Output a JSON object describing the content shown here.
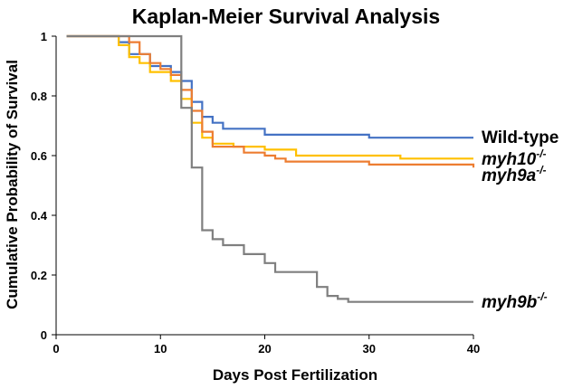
{
  "chart_data": {
    "type": "line",
    "title": "Kaplan-Meier Survival Analysis",
    "xlabel": "Days Post Fertilization",
    "ylabel": "Cumulative Probability of Survival",
    "xlim": [
      0,
      40
    ],
    "ylim": [
      0,
      1
    ],
    "x_ticks": [
      0,
      10,
      20,
      30,
      40
    ],
    "y_ticks": [
      0,
      0.2,
      0.4,
      0.6,
      0.8,
      1
    ],
    "x_tick_labels": [
      "0",
      "10",
      "20",
      "30",
      "40"
    ],
    "y_tick_labels": [
      "0",
      "0.2",
      "0.4",
      "0.6",
      "0.8",
      "1"
    ],
    "grid": false,
    "legend": "inline-right",
    "series": [
      {
        "name": "Wild-type",
        "label_main": "Wild-type",
        "label_sup": "",
        "italic": false,
        "color": "#4472C4",
        "x": [
          1,
          6,
          7,
          9,
          11,
          12,
          13,
          14,
          15,
          16,
          20,
          30,
          40
        ],
        "y": [
          1.0,
          0.98,
          0.94,
          0.9,
          0.88,
          0.85,
          0.78,
          0.73,
          0.71,
          0.69,
          0.67,
          0.66,
          0.66
        ]
      },
      {
        "name": "myh10-/-",
        "label_main": "myh10",
        "label_sup": "-/-",
        "italic": true,
        "color": "#FFC000",
        "x": [
          1,
          6,
          7,
          8,
          9,
          11,
          12,
          13,
          14,
          15,
          17,
          20,
          23,
          33,
          40
        ],
        "y": [
          1.0,
          0.97,
          0.93,
          0.91,
          0.88,
          0.85,
          0.79,
          0.71,
          0.66,
          0.64,
          0.63,
          0.62,
          0.6,
          0.59,
          0.59
        ]
      },
      {
        "name": "myh9a-/-",
        "label_main": "myh9a",
        "label_sup": "-/-",
        "italic": true,
        "color": "#ED7D31",
        "x": [
          1,
          6,
          7,
          8,
          9,
          10,
          11,
          12,
          13,
          14,
          15,
          18,
          20,
          21,
          22,
          30,
          40
        ],
        "y": [
          1.0,
          1.0,
          0.98,
          0.94,
          0.91,
          0.89,
          0.87,
          0.82,
          0.75,
          0.68,
          0.63,
          0.61,
          0.6,
          0.59,
          0.58,
          0.57,
          0.56
        ]
      },
      {
        "name": "myh9b-/-",
        "label_main": "myh9b",
        "label_sup": "-/-",
        "italic": true,
        "color": "#7F7F7F",
        "x": [
          1,
          11,
          12,
          13,
          14,
          15,
          16,
          18,
          20,
          21,
          25,
          26,
          27,
          28,
          40
        ],
        "y": [
          1.0,
          1.0,
          0.76,
          0.56,
          0.35,
          0.32,
          0.3,
          0.27,
          0.24,
          0.21,
          0.16,
          0.13,
          0.12,
          0.11,
          0.11
        ]
      }
    ]
  }
}
